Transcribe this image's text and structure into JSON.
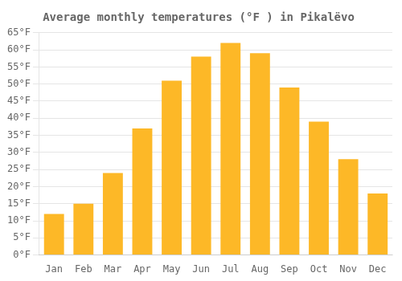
{
  "chart_data": {
    "type": "bar",
    "title": "Average monthly temperatures (°F ) in Pikalёvo",
    "categories": [
      "Jan",
      "Feb",
      "Mar",
      "Apr",
      "May",
      "Jun",
      "Jul",
      "Aug",
      "Sep",
      "Oct",
      "Nov",
      "Dec"
    ],
    "values": [
      12,
      15,
      24,
      37,
      51,
      58,
      62,
      59,
      49,
      39,
      28,
      18
    ],
    "color": "#FDB827",
    "ylim": [
      0,
      65
    ],
    "yticks": [
      {
        "value": 0,
        "label": "0°F"
      },
      {
        "value": 5,
        "label": "5°F"
      },
      {
        "value": 10,
        "label": "10°F"
      },
      {
        "value": 15,
        "label": "15°F"
      },
      {
        "value": 20,
        "label": "20°F"
      },
      {
        "value": 25,
        "label": "25°F"
      },
      {
        "value": 30,
        "label": "30°F"
      },
      {
        "value": 35,
        "label": "35°F"
      },
      {
        "value": 40,
        "label": "40°F"
      },
      {
        "value": 45,
        "label": "45°F"
      },
      {
        "value": 50,
        "label": "50°F"
      },
      {
        "value": 55,
        "label": "55°F"
      },
      {
        "value": 60,
        "label": "60°F"
      },
      {
        "value": 65,
        "label": "65°F"
      }
    ],
    "grid": true
  }
}
